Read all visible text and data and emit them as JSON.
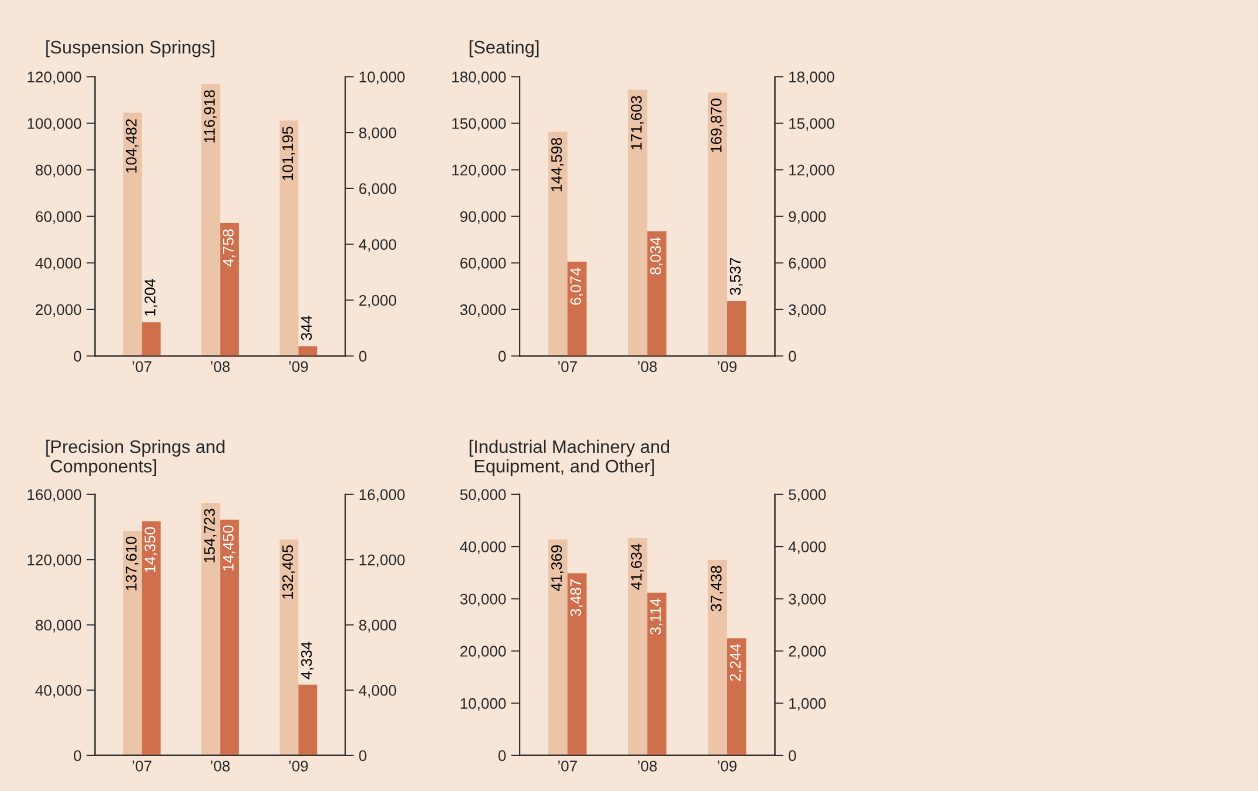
{
  "chart_data": [
    {
      "type": "bar",
      "title": "[Suspension Springs]",
      "categories": [
        "’07",
        "’08",
        "’09"
      ],
      "ylim": [
        0,
        120000
      ],
      "yticks": [
        {
          "value": 0,
          "label": "0"
        },
        {
          "value": 20000,
          "label": "20,000"
        },
        {
          "value": 40000,
          "label": "40,000"
        },
        {
          "value": 60000,
          "label": "60,000"
        },
        {
          "value": 80000,
          "label": "80,000"
        },
        {
          "value": 100000,
          "label": "100,000"
        },
        {
          "value": 120000,
          "label": "120,000"
        }
      ],
      "y2lim": [
        0,
        10000
      ],
      "y2ticks": [
        {
          "value": 0,
          "label": "0"
        },
        {
          "value": 2000,
          "label": "2,000"
        },
        {
          "value": 4000,
          "label": "4,000"
        },
        {
          "value": 6000,
          "label": "6,000"
        },
        {
          "value": 8000,
          "label": "8,000"
        },
        {
          "value": 10000,
          "label": "10,000"
        }
      ],
      "grid": false,
      "legend": false,
      "series": [
        {
          "color": "#ecc4a8",
          "values": [
            104482,
            116918,
            101195
          ],
          "value_labels": [
            "104,482",
            "116,918",
            "101,195"
          ]
        },
        {
          "color": "#cf6f4c",
          "axis": "y2",
          "values": [
            1204,
            4758,
            344
          ],
          "value_labels": [
            "1,204",
            "4,758",
            "344"
          ]
        }
      ]
    },
    {
      "type": "bar",
      "title": "[Seating]",
      "categories": [
        "’07",
        "’08",
        "’09"
      ],
      "ylim": [
        0,
        180000
      ],
      "yticks": [
        {
          "value": 0,
          "label": "0"
        },
        {
          "value": 30000,
          "label": "30,000"
        },
        {
          "value": 60000,
          "label": "60,000"
        },
        {
          "value": 90000,
          "label": "90,000"
        },
        {
          "value": 120000,
          "label": "120,000"
        },
        {
          "value": 150000,
          "label": "150,000"
        },
        {
          "value": 180000,
          "label": "180,000"
        }
      ],
      "y2lim": [
        0,
        18000
      ],
      "y2ticks": [
        {
          "value": 0,
          "label": "0"
        },
        {
          "value": 3000,
          "label": "3,000"
        },
        {
          "value": 6000,
          "label": "6,000"
        },
        {
          "value": 9000,
          "label": "9,000"
        },
        {
          "value": 12000,
          "label": "12,000"
        },
        {
          "value": 15000,
          "label": "15,000"
        },
        {
          "value": 18000,
          "label": "18,000"
        }
      ],
      "grid": false,
      "legend": false,
      "series": [
        {
          "color": "#ecc4a8",
          "values": [
            144598,
            171603,
            169870
          ],
          "value_labels": [
            "144,598",
            "171,603",
            "169,870"
          ]
        },
        {
          "color": "#cf6f4c",
          "axis": "y2",
          "values": [
            6074,
            8034,
            3537
          ],
          "value_labels": [
            "6,074",
            "8,034",
            "3,537"
          ]
        }
      ]
    },
    {
      "type": "bar",
      "title": "[Precision Springs and\n Components]",
      "categories": [
        "’07",
        "’08",
        "’09"
      ],
      "ylim": [
        0,
        160000
      ],
      "yticks": [
        {
          "value": 0,
          "label": "0"
        },
        {
          "value": 40000,
          "label": "40,000"
        },
        {
          "value": 80000,
          "label": "80,000"
        },
        {
          "value": 120000,
          "label": "120,000"
        },
        {
          "value": 160000,
          "label": "160,000"
        }
      ],
      "y2lim": [
        0,
        16000
      ],
      "y2ticks": [
        {
          "value": 0,
          "label": "0"
        },
        {
          "value": 4000,
          "label": "4,000"
        },
        {
          "value": 8000,
          "label": "8,000"
        },
        {
          "value": 12000,
          "label": "12,000"
        },
        {
          "value": 16000,
          "label": "16,000"
        }
      ],
      "grid": false,
      "legend": false,
      "series": [
        {
          "color": "#ecc4a8",
          "values": [
            137610,
            154723,
            132405
          ],
          "value_labels": [
            "137,610",
            "154,723",
            "132,405"
          ]
        },
        {
          "color": "#cf6f4c",
          "axis": "y2",
          "values": [
            14350,
            14450,
            4334
          ],
          "value_labels": [
            "14,350",
            "14,450",
            "4,334"
          ]
        }
      ]
    },
    {
      "type": "bar",
      "title": "[Industrial Machinery and\n Equipment, and Other]",
      "categories": [
        "’07",
        "’08",
        "’09"
      ],
      "ylim": [
        0,
        50000
      ],
      "yticks": [
        {
          "value": 0,
          "label": "0"
        },
        {
          "value": 10000,
          "label": "10,000"
        },
        {
          "value": 20000,
          "label": "20,000"
        },
        {
          "value": 30000,
          "label": "30,000"
        },
        {
          "value": 40000,
          "label": "40,000"
        },
        {
          "value": 50000,
          "label": "50,000"
        }
      ],
      "y2lim": [
        0,
        5000
      ],
      "y2ticks": [
        {
          "value": 0,
          "label": "0"
        },
        {
          "value": 1000,
          "label": "1,000"
        },
        {
          "value": 2000,
          "label": "2,000"
        },
        {
          "value": 3000,
          "label": "3,000"
        },
        {
          "value": 4000,
          "label": "4,000"
        },
        {
          "value": 5000,
          "label": "5,000"
        }
      ],
      "grid": false,
      "legend": false,
      "series": [
        {
          "color": "#ecc4a8",
          "values": [
            41369,
            41634,
            37438
          ],
          "value_labels": [
            "41,369",
            "41,634",
            "37,438"
          ]
        },
        {
          "color": "#cf6f4c",
          "axis": "y2",
          "values": [
            3487,
            3114,
            2244
          ],
          "value_labels": [
            "3,487",
            "3,114",
            "2,244"
          ]
        }
      ]
    }
  ]
}
